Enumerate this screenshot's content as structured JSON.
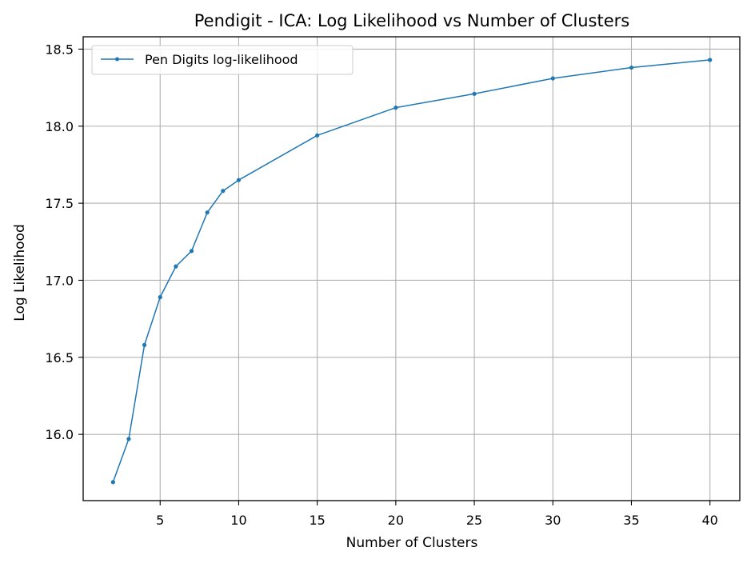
{
  "chart_data": {
    "type": "line",
    "title": "Pendigit - ICA: Log Likelihood vs Number of Clusters",
    "xlabel": "Number of Clusters",
    "ylabel": "Log Likelihood",
    "xlim": [
      0.1,
      41.9
    ],
    "ylim": [
      15.57,
      18.58
    ],
    "xticks": [
      5,
      10,
      15,
      20,
      25,
      30,
      35,
      40
    ],
    "yticks": [
      16.0,
      16.5,
      17.0,
      17.5,
      18.0,
      18.5
    ],
    "grid": true,
    "legend_position": "upper-left",
    "series": [
      {
        "name": "Pen Digits log-likelihood",
        "color": "#1f77b4",
        "x": [
          2,
          3,
          4,
          5,
          6,
          7,
          8,
          9,
          10,
          15,
          20,
          25,
          30,
          35,
          40
        ],
        "y": [
          15.69,
          15.97,
          16.58,
          16.89,
          17.09,
          17.19,
          17.44,
          17.58,
          17.65,
          17.94,
          18.12,
          18.21,
          18.31,
          18.38,
          18.43
        ]
      }
    ]
  }
}
